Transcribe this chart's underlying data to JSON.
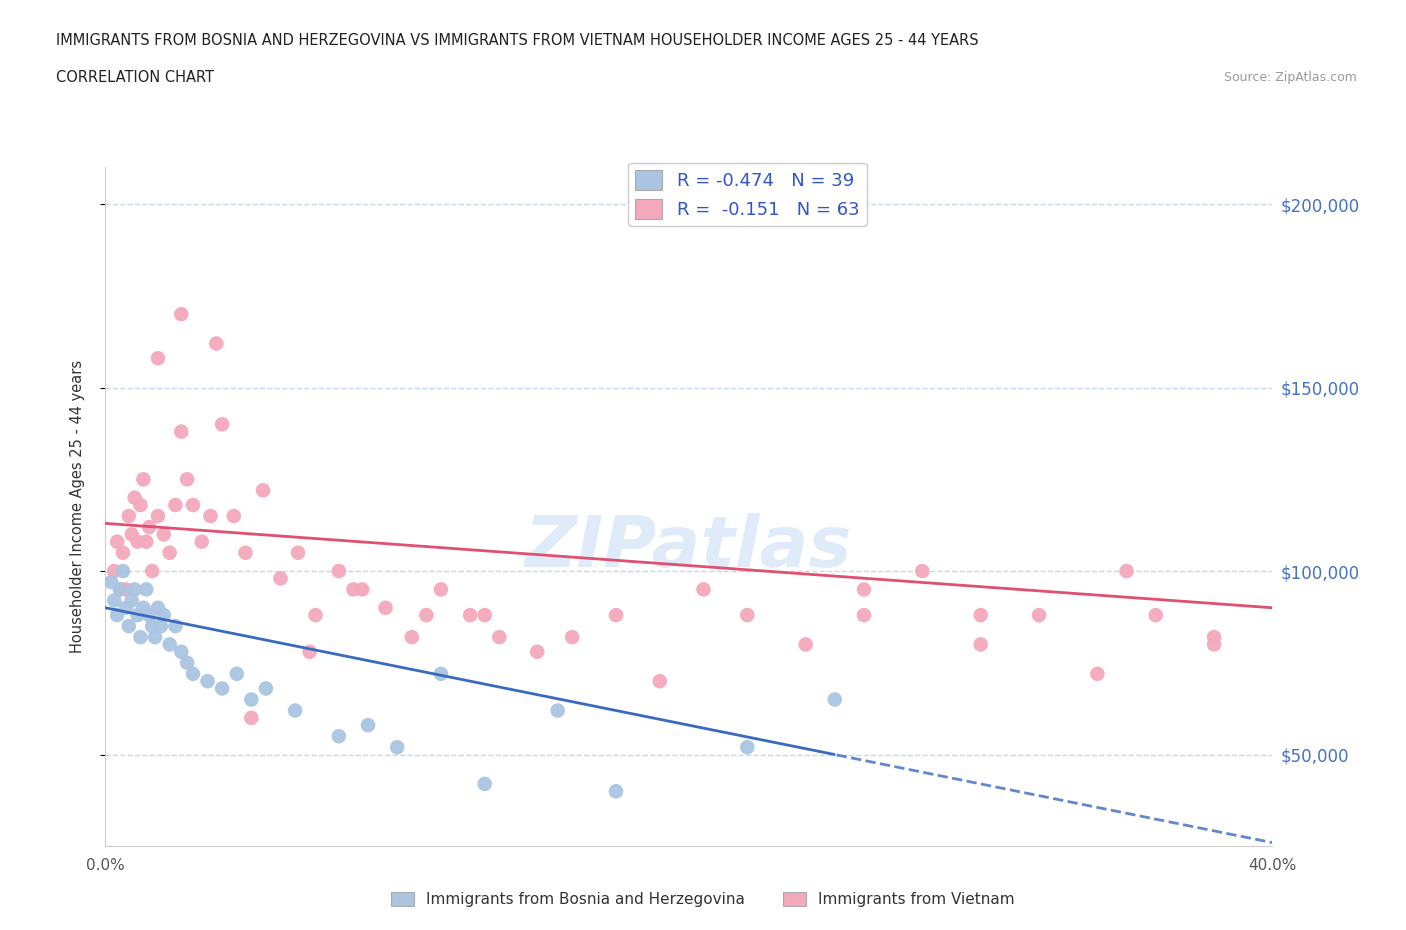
{
  "title_line1": "IMMIGRANTS FROM BOSNIA AND HERZEGOVINA VS IMMIGRANTS FROM VIETNAM HOUSEHOLDER INCOME AGES 25 - 44 YEARS",
  "title_line2": "CORRELATION CHART",
  "source_text": "Source: ZipAtlas.com",
  "ylabel": "Householder Income Ages 25 - 44 years",
  "xlim": [
    0.0,
    0.4
  ],
  "ylim": [
    25000,
    210000
  ],
  "ytick_vals": [
    50000,
    100000,
    150000,
    200000
  ],
  "ytick_labels": [
    "$50,000",
    "$100,000",
    "$150,000",
    "$200,000"
  ],
  "xtick_vals": [
    0.0,
    0.05,
    0.1,
    0.15,
    0.2,
    0.25,
    0.3,
    0.35,
    0.4
  ],
  "bosnia_color": "#aac4e2",
  "vietnam_color": "#f4a8bc",
  "bosnia_line_color": "#3a6abf",
  "vietnam_line_color": "#e05070",
  "bosnia_R": -0.474,
  "bosnia_N": 39,
  "vietnam_R": -0.151,
  "vietnam_N": 63,
  "watermark_text": "ZIPatlas",
  "background_color": "#ffffff",
  "grid_color": "#c5d8ea",
  "axis_label_color": "#4472c4",
  "bosnia_scatter_x": [
    0.002,
    0.003,
    0.004,
    0.005,
    0.006,
    0.007,
    0.008,
    0.009,
    0.01,
    0.011,
    0.012,
    0.013,
    0.014,
    0.015,
    0.016,
    0.017,
    0.018,
    0.019,
    0.02,
    0.022,
    0.024,
    0.026,
    0.028,
    0.03,
    0.035,
    0.04,
    0.045,
    0.05,
    0.055,
    0.065,
    0.08,
    0.09,
    0.1,
    0.115,
    0.13,
    0.155,
    0.175,
    0.22,
    0.25
  ],
  "bosnia_scatter_y": [
    97000,
    92000,
    88000,
    95000,
    100000,
    90000,
    85000,
    92000,
    95000,
    88000,
    82000,
    90000,
    95000,
    88000,
    85000,
    82000,
    90000,
    85000,
    88000,
    80000,
    85000,
    78000,
    75000,
    72000,
    70000,
    68000,
    72000,
    65000,
    68000,
    62000,
    55000,
    58000,
    52000,
    72000,
    42000,
    62000,
    40000,
    52000,
    65000
  ],
  "vietnam_scatter_x": [
    0.003,
    0.004,
    0.005,
    0.006,
    0.007,
    0.008,
    0.009,
    0.01,
    0.011,
    0.012,
    0.013,
    0.014,
    0.015,
    0.016,
    0.018,
    0.02,
    0.022,
    0.024,
    0.026,
    0.028,
    0.03,
    0.033,
    0.036,
    0.04,
    0.044,
    0.048,
    0.054,
    0.06,
    0.066,
    0.072,
    0.08,
    0.088,
    0.096,
    0.105,
    0.115,
    0.125,
    0.135,
    0.148,
    0.16,
    0.175,
    0.19,
    0.205,
    0.22,
    0.24,
    0.26,
    0.28,
    0.3,
    0.32,
    0.34,
    0.36,
    0.38,
    0.018,
    0.026,
    0.038,
    0.05,
    0.07,
    0.085,
    0.11,
    0.13,
    0.26,
    0.3,
    0.35,
    0.38
  ],
  "vietnam_scatter_y": [
    100000,
    108000,
    95000,
    105000,
    95000,
    115000,
    110000,
    120000,
    108000,
    118000,
    125000,
    108000,
    112000,
    100000,
    115000,
    110000,
    105000,
    118000,
    138000,
    125000,
    118000,
    108000,
    115000,
    140000,
    115000,
    105000,
    122000,
    98000,
    105000,
    88000,
    100000,
    95000,
    90000,
    82000,
    95000,
    88000,
    82000,
    78000,
    82000,
    88000,
    70000,
    95000,
    88000,
    80000,
    88000,
    100000,
    80000,
    88000,
    72000,
    88000,
    80000,
    158000,
    170000,
    162000,
    60000,
    78000,
    95000,
    88000,
    88000,
    95000,
    88000,
    100000,
    82000
  ]
}
